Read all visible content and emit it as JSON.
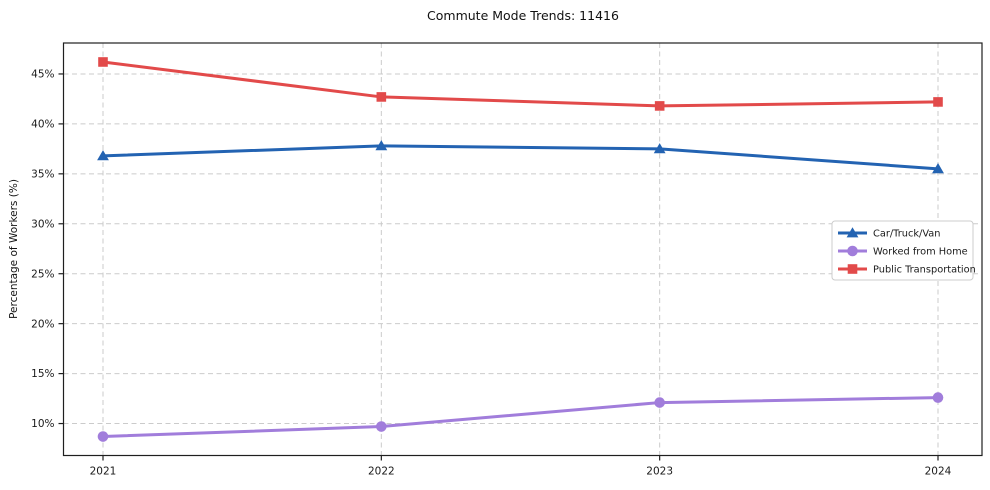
{
  "chart_data": {
    "type": "line",
    "title": "Commute Mode Trends: 11416",
    "xlabel": "",
    "ylabel": "Percentage of Workers (%)",
    "x": [
      "2021",
      "2022",
      "2023",
      "2024"
    ],
    "series": [
      {
        "name": "Car/Truck/Van",
        "marker": "triangle",
        "color": "#2363b2",
        "values": [
          36.8,
          37.8,
          37.5,
          35.5
        ]
      },
      {
        "name": "Worked from Home",
        "marker": "circle",
        "color": "#a17ddb",
        "values": [
          8.7,
          9.7,
          12.1,
          12.6
        ]
      },
      {
        "name": "Public Transportation",
        "marker": "square",
        "color": "#e24a4a",
        "values": [
          46.2,
          42.7,
          41.8,
          42.2
        ]
      }
    ],
    "yticks": [
      10,
      15,
      20,
      25,
      30,
      35,
      40,
      45
    ],
    "ytick_suffix": "%",
    "ylim": [
      6.8,
      48.1
    ],
    "grid": true,
    "grid_style": "dashed",
    "legend_position": "right-center",
    "colors": {
      "grid": "#cbcbcb",
      "axis": "#1f1f1f",
      "text": "#1a1a1a",
      "background": "#ffffff",
      "legend_border": "#cccccc"
    }
  }
}
